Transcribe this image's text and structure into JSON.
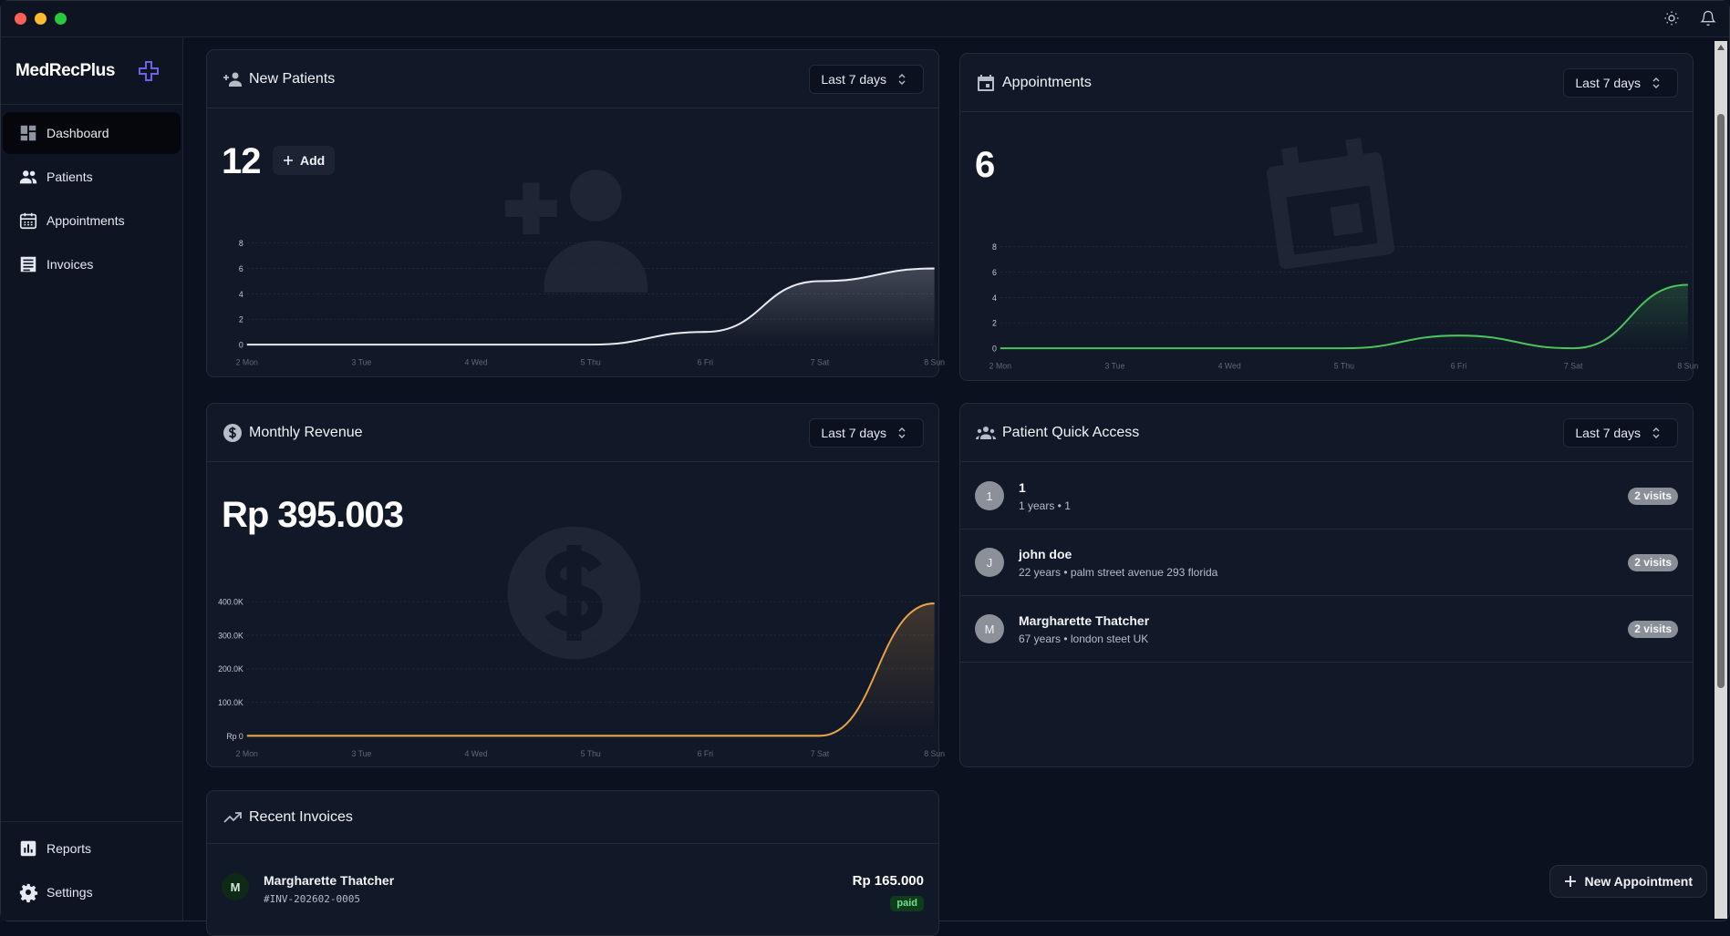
{
  "app": {
    "brand": "MedRecPlus"
  },
  "sidebar": {
    "items": [
      {
        "label": "Dashboard",
        "icon": "dashboard-icon"
      },
      {
        "label": "Patients",
        "icon": "people-icon"
      },
      {
        "label": "Appointments",
        "icon": "calendar-icon"
      },
      {
        "label": "Invoices",
        "icon": "invoice-icon"
      }
    ],
    "bottom_items": [
      {
        "label": "Reports",
        "icon": "chart-icon"
      },
      {
        "label": "Settings",
        "icon": "gear-icon"
      }
    ]
  },
  "new_patients": {
    "title": "New Patients",
    "range": "Last 7 days",
    "count": "12",
    "add_label": "Add",
    "chart_data": {
      "type": "area",
      "x": [
        "2 Mon",
        "3 Tue",
        "4 Wed",
        "5 Thu",
        "6 Fri",
        "7 Sat",
        "8 Sun"
      ],
      "y": [
        0,
        0,
        0,
        0,
        1,
        5,
        6
      ],
      "ylim": [
        0,
        8
      ],
      "yticks": [
        0,
        2,
        4,
        6,
        8
      ],
      "ytick_labels": [
        "0",
        "2",
        "4",
        "6",
        "8"
      ],
      "grid": true,
      "color": "#e8eaf0"
    }
  },
  "appointments": {
    "title": "Appointments",
    "range": "Last 7 days",
    "count": "6",
    "chart_data": {
      "type": "area",
      "x": [
        "2 Mon",
        "3 Tue",
        "4 Wed",
        "5 Thu",
        "6 Fri",
        "7 Sat",
        "8 Sun"
      ],
      "y": [
        0,
        0,
        0,
        0,
        1,
        0,
        5
      ],
      "ylim": [
        0,
        8
      ],
      "yticks": [
        0,
        2,
        4,
        6,
        8
      ],
      "ytick_labels": [
        "0",
        "2",
        "4",
        "6",
        "8"
      ],
      "grid": true,
      "color": "#4cc35a"
    }
  },
  "monthly_revenue": {
    "title": "Monthly Revenue",
    "range": "Last 7 days",
    "total": "Rp 395.003",
    "chart_data": {
      "type": "area",
      "x": [
        "2 Mon",
        "3 Tue",
        "4 Wed",
        "5 Thu",
        "6 Fri",
        "7 Sat",
        "8 Sun"
      ],
      "y": [
        0,
        0,
        0,
        0,
        0,
        0,
        395003
      ],
      "ylim": [
        0,
        400000
      ],
      "yticks": [
        0,
        100000,
        200000,
        300000,
        400000
      ],
      "ytick_labels": [
        "Rp 0",
        "100.0K",
        "200.0K",
        "300.0K",
        "400.0K"
      ],
      "grid": true,
      "color": "#e8a34a"
    }
  },
  "patient_quick_access": {
    "title": "Patient Quick Access",
    "range": "Last 7 days",
    "patients": [
      {
        "initial": "1",
        "name": "1",
        "details": "1 years • 1",
        "visits": "2 visits"
      },
      {
        "initial": "J",
        "name": "john doe",
        "details": "22 years • palm street avenue 293 florida",
        "visits": "2 visits"
      },
      {
        "initial": "M",
        "name": "Margharette Thatcher",
        "details": "67 years • london steet UK",
        "visits": "2 visits"
      }
    ]
  },
  "recent_invoices": {
    "title": "Recent Invoices",
    "items": [
      {
        "initial": "M",
        "name": "Margharette Thatcher",
        "id": "#INV-202602-0005",
        "amount": "Rp 165.000",
        "status": "paid"
      }
    ]
  },
  "fab": {
    "label": "New Appointment"
  }
}
